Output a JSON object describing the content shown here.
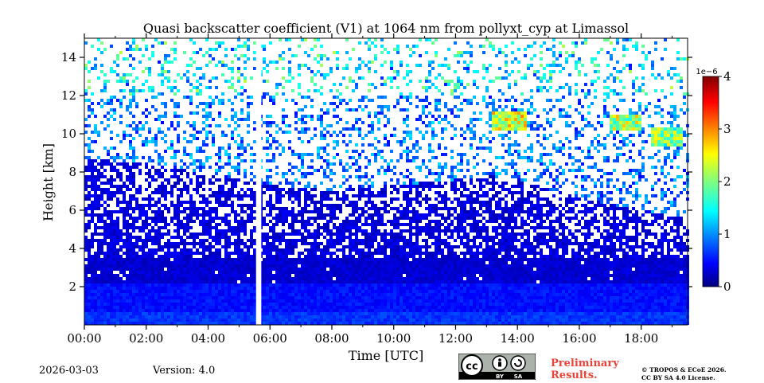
{
  "chart_data": {
    "type": "heatmap",
    "title": "Quasi backscatter coefficient (V1) at 1064 nm from pollyxt_cyp at Limassol",
    "xlabel": "Time [UTC]",
    "ylabel": "Height [km]",
    "xlim_hours": [
      0,
      19.5
    ],
    "ylim_km": [
      0,
      15
    ],
    "x_ticks": [
      {
        "hour": 0,
        "label": "00:00"
      },
      {
        "hour": 2,
        "label": "02:00"
      },
      {
        "hour": 4,
        "label": "04:00"
      },
      {
        "hour": 6,
        "label": "06:00"
      },
      {
        "hour": 8,
        "label": "08:00"
      },
      {
        "hour": 10,
        "label": "10:00"
      },
      {
        "hour": 12,
        "label": "12:00"
      },
      {
        "hour": 14,
        "label": "14:00"
      },
      {
        "hour": 16,
        "label": "16:00"
      },
      {
        "hour": 18,
        "label": "18:00"
      }
    ],
    "y_ticks": [
      {
        "km": 2,
        "label": "2"
      },
      {
        "km": 4,
        "label": "4"
      },
      {
        "km": 6,
        "label": "6"
      },
      {
        "km": 8,
        "label": "8"
      },
      {
        "km": 10,
        "label": "10"
      },
      {
        "km": 12,
        "label": "12"
      },
      {
        "km": 14,
        "label": "14"
      }
    ],
    "colorbar": {
      "colormap": "jet",
      "vmin": 0,
      "vmax": 4,
      "exponent_label": "1e−6",
      "ticks": [
        {
          "value": 0,
          "label": "0"
        },
        {
          "value": 1,
          "label": "1"
        },
        {
          "value": 2,
          "label": "2"
        },
        {
          "value": 3,
          "label": "3"
        },
        {
          "value": 4,
          "label": "4"
        }
      ]
    },
    "data_gaps_hours": [
      [
        5.55,
        5.72
      ]
    ],
    "features": {
      "boundary_layer_top_km": 2.2,
      "aerosol_layer_top_km": [
        {
          "hour": 0,
          "km": 8.7
        },
        {
          "hour": 2,
          "km": 8.4
        },
        {
          "hour": 4,
          "km": 7.9
        },
        {
          "hour": 6,
          "km": 7.3
        },
        {
          "hour": 8,
          "km": 7.0
        },
        {
          "hour": 10,
          "km": 7.3
        },
        {
          "hour": 12,
          "km": 7.6
        },
        {
          "hour": 13,
          "km": 7.8
        },
        {
          "hour": 14,
          "km": 7.6
        },
        {
          "hour": 16,
          "km": 6.6
        },
        {
          "hour": 18,
          "km": 6.0
        },
        {
          "hour": 19.5,
          "km": 5.6
        }
      ],
      "clouds": [
        {
          "start_hour": 13.1,
          "end_hour": 14.3,
          "km": 10.7,
          "value": 2.4
        },
        {
          "start_hour": 16.9,
          "end_hour": 18.0,
          "km": 10.6,
          "value": 2.2
        },
        {
          "start_hour": 18.3,
          "end_hour": 19.3,
          "km": 9.8,
          "value": 2.0
        }
      ]
    }
  },
  "footer": {
    "date": "2026-03-03",
    "version": "Version: 4.0",
    "preliminary_line1": "Preliminary",
    "preliminary_line2": "Results.",
    "copyright_line1": "© TROPOS & ECoE 2026.",
    "copyright_line2": "CC BY SA 4.0 License.",
    "badge_by": "BY",
    "badge_sa": "SA"
  }
}
